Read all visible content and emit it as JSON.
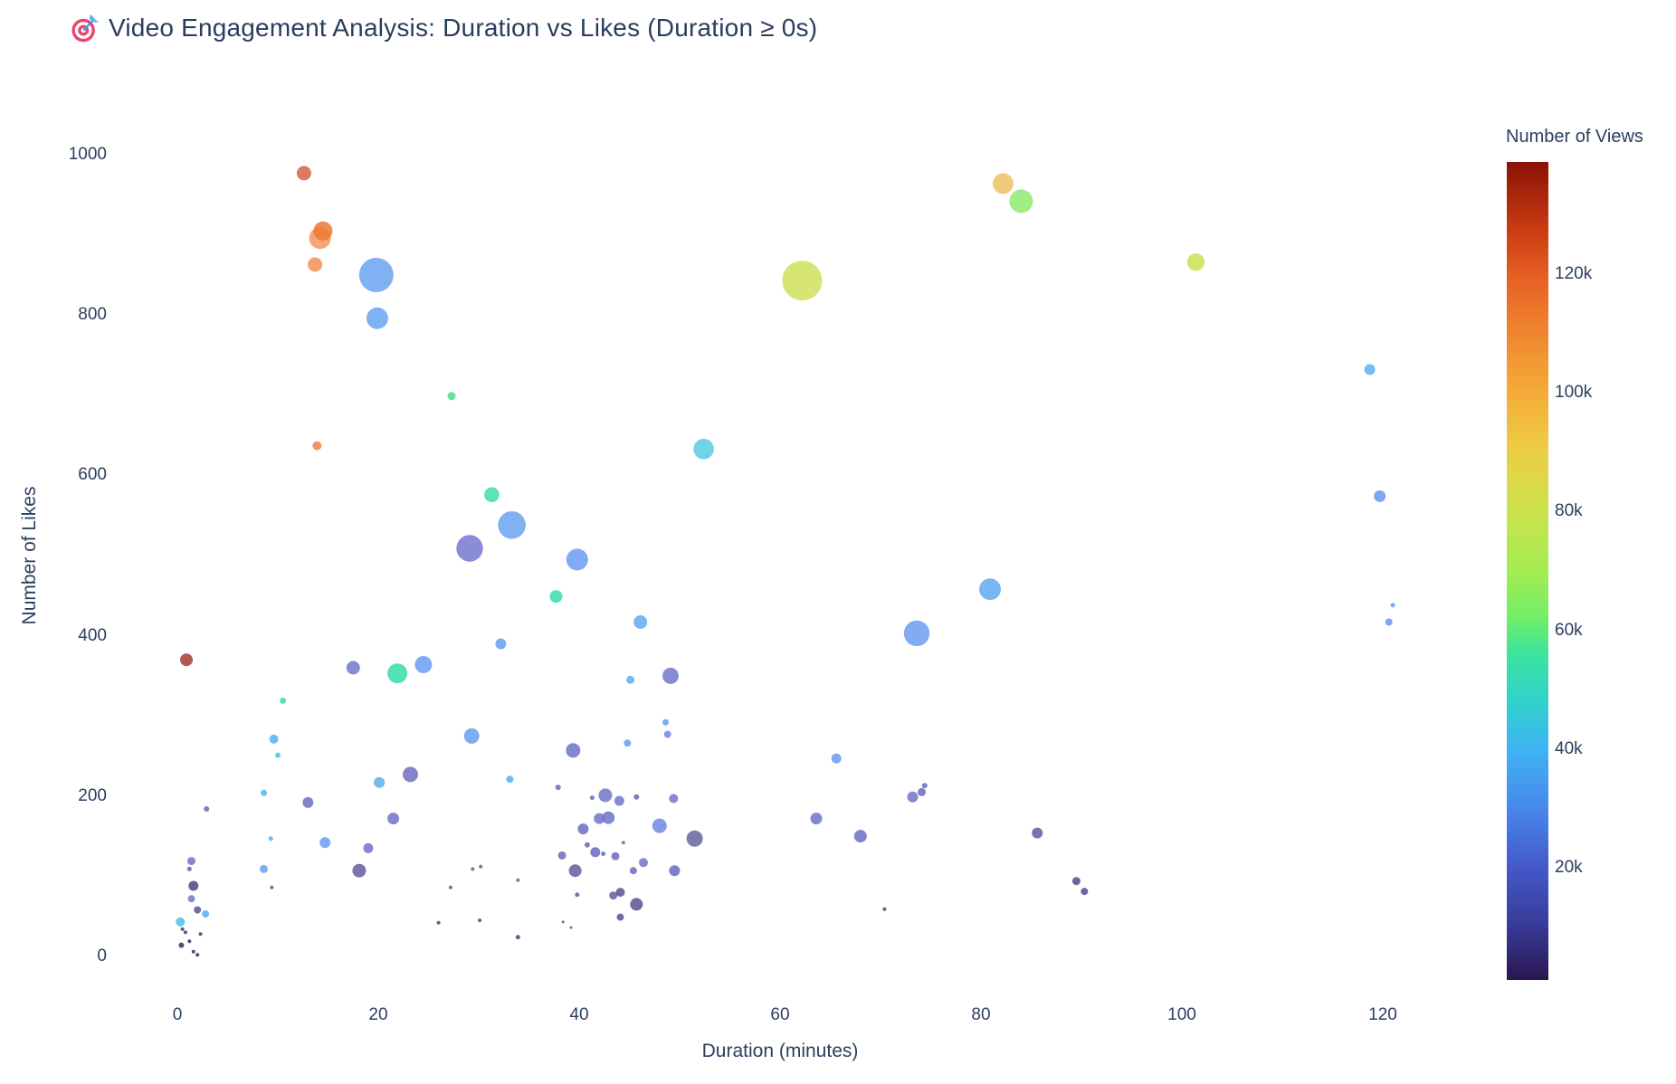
{
  "title": {
    "icon": "dart-target",
    "text": "Video Engagement Analysis: Duration vs Likes (Duration ≥ 0s)"
  },
  "chart_data": {
    "type": "scatter",
    "title": "Video Engagement Analysis: Duration vs Likes (Duration ≥ 0s)",
    "xlabel": "Duration (minutes)",
    "ylabel": "Number of Likes",
    "x_ticks": [
      0,
      20,
      40,
      60,
      80,
      100,
      120
    ],
    "y_ticks": [
      0,
      200,
      400,
      600,
      800,
      1000
    ],
    "xlim": [
      -3,
      124
    ],
    "ylim": [
      -60,
      1060
    ],
    "grid": false,
    "legend_position": "none",
    "colorbar": {
      "title": "Number of Views",
      "ticks_k": [
        20,
        40,
        60,
        80,
        100,
        120
      ],
      "tick_labels": [
        "20k",
        "40k",
        "60k",
        "80k",
        "100k",
        "120k"
      ],
      "vmin_k": 1,
      "vmax_k": 139,
      "colormap": "turbo"
    },
    "columns": [
      "duration_min",
      "likes",
      "views_k",
      "radius_px",
      "color"
    ],
    "points": [
      [
        12.6,
        977,
        120,
        8,
        "#d95f45"
      ],
      [
        14.2,
        896,
        97,
        12,
        "#f3975a"
      ],
      [
        14.5,
        905,
        105,
        10.5,
        "#ec7a33"
      ],
      [
        13.7,
        863,
        100,
        8,
        "#f29254"
      ],
      [
        19.8,
        850,
        26,
        19,
        "#6aa5f1"
      ],
      [
        19.9,
        796,
        26,
        12,
        "#6aa5f1"
      ],
      [
        82.2,
        964,
        90,
        11.5,
        "#f0c263"
      ],
      [
        84.0,
        942,
        61,
        13,
        "#90e96e"
      ],
      [
        62.2,
        843,
        77,
        22,
        "#cfe05c"
      ],
      [
        101.4,
        866,
        78,
        9.7,
        "#c9e252"
      ],
      [
        27.3,
        699,
        56,
        4.5,
        "#4ade80"
      ],
      [
        13.9,
        637,
        106,
        5,
        "#ee8048"
      ],
      [
        52.4,
        633,
        40,
        11.3,
        "#57cbe2"
      ],
      [
        118.7,
        732,
        31,
        6,
        "#5db3f0"
      ],
      [
        119.7,
        574,
        23,
        6.5,
        "#6699ee"
      ],
      [
        121.0,
        438,
        23,
        2.5,
        "#6699ee"
      ],
      [
        120.6,
        417,
        23,
        4,
        "#6699ee"
      ],
      [
        31.3,
        576,
        50,
        8.3,
        "#3edfa0"
      ],
      [
        33.3,
        538,
        23,
        15.3,
        "#6aa3f0"
      ],
      [
        29.1,
        509,
        13,
        14.7,
        "#7678d0"
      ],
      [
        39.8,
        495,
        21,
        12,
        "#6b9df0"
      ],
      [
        37.7,
        449,
        46,
        7,
        "#38dcae"
      ],
      [
        46.1,
        417,
        26,
        7.5,
        "#64a8f0"
      ],
      [
        80.9,
        458,
        26,
        12,
        "#63aaf0"
      ],
      [
        73.6,
        403,
        21,
        14.2,
        "#6b9df0"
      ],
      [
        0.9,
        370,
        135,
        7,
        "#a33c32"
      ],
      [
        17.5,
        360,
        14,
        7.5,
        "#7278cc"
      ],
      [
        21.9,
        353,
        48,
        11,
        "#36dcaa"
      ],
      [
        24.5,
        364,
        21,
        9.5,
        "#6b9df0"
      ],
      [
        32.2,
        390,
        23,
        6,
        "#66a0f0"
      ],
      [
        10.5,
        319,
        46,
        3.5,
        "#38dcae"
      ],
      [
        9.6,
        271,
        35,
        5,
        "#55b4ee"
      ],
      [
        10.0,
        251,
        38,
        3,
        "#47c4e8"
      ],
      [
        29.3,
        275,
        23,
        8.5,
        "#66a0f0"
      ],
      [
        23.2,
        227,
        12,
        8.5,
        "#6f6fc0"
      ],
      [
        20.1,
        217,
        30,
        6,
        "#59b0ee"
      ],
      [
        8.6,
        204,
        35,
        3.5,
        "#55b4ee"
      ],
      [
        13.0,
        192,
        12,
        6,
        "#6f6fc0"
      ],
      [
        2.9,
        184,
        10,
        3,
        "#6666b8"
      ],
      [
        21.5,
        172,
        13,
        6.5,
        "#6f73c8"
      ],
      [
        33.1,
        221,
        30,
        4,
        "#59b0ee"
      ],
      [
        45.1,
        345,
        32,
        4.5,
        "#58b2ee"
      ],
      [
        49.1,
        350,
        15,
        9,
        "#7178cc"
      ],
      [
        48.6,
        292,
        25,
        3.5,
        "#66a0f0"
      ],
      [
        48.8,
        277,
        18,
        4,
        "#6c8ade"
      ],
      [
        44.8,
        266,
        21,
        4,
        "#6b9df0"
      ],
      [
        39.4,
        257,
        13,
        8,
        "#6f73c8"
      ],
      [
        37.9,
        211,
        12,
        3,
        "#6a6abc"
      ],
      [
        42.6,
        201,
        14,
        7.5,
        "#7076ca"
      ],
      [
        44.0,
        194,
        15,
        5.5,
        "#7178cc"
      ],
      [
        41.3,
        198,
        12,
        2.5,
        "#6a6abc"
      ],
      [
        45.7,
        199,
        12,
        3,
        "#6a6abc"
      ],
      [
        49.4,
        197,
        14,
        5,
        "#7076ca"
      ],
      [
        42.0,
        172,
        13,
        6,
        "#6f73c8"
      ],
      [
        42.9,
        173,
        13,
        7,
        "#6f73c8"
      ],
      [
        40.4,
        159,
        12,
        6,
        "#6a6fc2"
      ],
      [
        48.0,
        163,
        18,
        8,
        "#6c8ade"
      ],
      [
        51.5,
        147,
        9,
        9,
        "#68639f"
      ],
      [
        44.4,
        142,
        12,
        2,
        "#6a6abc"
      ],
      [
        40.8,
        139,
        12,
        3,
        "#6a6abc"
      ],
      [
        41.6,
        130,
        12,
        5.5,
        "#6a6abc"
      ],
      [
        42.4,
        128,
        12,
        2.5,
        "#6a6abc"
      ],
      [
        43.6,
        125,
        12,
        4.5,
        "#6a6abc"
      ],
      [
        38.3,
        126,
        12,
        4.5,
        "#6a6abc"
      ],
      [
        39.6,
        107,
        9,
        7,
        "#635d9c"
      ],
      [
        46.4,
        117,
        13,
        5,
        "#6f73c8"
      ],
      [
        45.4,
        107,
        12,
        4,
        "#6a6abc"
      ],
      [
        49.5,
        107,
        12,
        6,
        "#6a6abc"
      ],
      [
        39.8,
        77,
        10,
        2.5,
        "#5f5fa8"
      ],
      [
        43.4,
        76,
        10,
        4.5,
        "#5f5fa8"
      ],
      [
        44.1,
        80,
        8,
        5,
        "#575294"
      ],
      [
        45.7,
        65,
        8,
        7,
        "#575294"
      ],
      [
        44.1,
        49,
        8,
        4,
        "#575294"
      ],
      [
        38.4,
        43,
        8,
        1.5,
        "#575294"
      ],
      [
        39.2,
        36,
        8,
        1.5,
        "#575294"
      ],
      [
        33.9,
        24,
        6,
        2.5,
        "#4a4484"
      ],
      [
        33.9,
        95,
        10,
        2,
        "#5f5fa8"
      ],
      [
        9.3,
        147,
        30,
        2.5,
        "#59b0ee"
      ],
      [
        14.7,
        142,
        21,
        6,
        "#6b9df0"
      ],
      [
        19.0,
        135,
        13,
        5.5,
        "#6f73c8"
      ],
      [
        1.4,
        119,
        13,
        4.5,
        "#6f73c8"
      ],
      [
        1.2,
        109,
        10,
        2.5,
        "#5f5fa8"
      ],
      [
        8.6,
        109,
        25,
        4.5,
        "#66a0f0"
      ],
      [
        18.1,
        107,
        9,
        7.5,
        "#635d9c"
      ],
      [
        1.6,
        88,
        6,
        5.5,
        "#4a4484"
      ],
      [
        9.4,
        86,
        8,
        2,
        "#575294"
      ],
      [
        29.4,
        109,
        10,
        2,
        "#5f5fa8"
      ],
      [
        30.2,
        112,
        10,
        2,
        "#5f5fa8"
      ],
      [
        27.2,
        86,
        8,
        2,
        "#575294"
      ],
      [
        1.4,
        72,
        15,
        4,
        "#7178cc"
      ],
      [
        2.0,
        58,
        8,
        4,
        "#575294"
      ],
      [
        2.8,
        53,
        28,
        4,
        "#5babf0"
      ],
      [
        0.3,
        43,
        33,
        5,
        "#4fc0ea"
      ],
      [
        0.5,
        34,
        5,
        2,
        "#423a74"
      ],
      [
        0.8,
        30,
        5,
        2,
        "#423a74"
      ],
      [
        2.3,
        28,
        5,
        2,
        "#423a74"
      ],
      [
        0.4,
        14,
        4,
        3,
        "#3a2d60"
      ],
      [
        1.6,
        6,
        4,
        2,
        "#3a2d60"
      ],
      [
        2.0,
        2,
        4,
        2,
        "#3a2d60"
      ],
      [
        1.2,
        19,
        4,
        2,
        "#3a2d60"
      ],
      [
        26.0,
        42,
        6,
        2,
        "#4a4484"
      ],
      [
        30.1,
        45,
        6,
        2,
        "#4a4484"
      ],
      [
        65.6,
        247,
        21,
        5.5,
        "#6b9df0"
      ],
      [
        74.4,
        213,
        12,
        3,
        "#6a6abc"
      ],
      [
        74.1,
        205,
        12,
        4.5,
        "#6a6abc"
      ],
      [
        73.2,
        199,
        13,
        6,
        "#6f73c8"
      ],
      [
        63.6,
        172,
        13,
        6.5,
        "#6f73c8"
      ],
      [
        68.0,
        150,
        12,
        7,
        "#6a6fc2"
      ],
      [
        85.6,
        154,
        10,
        6,
        "#625d9e"
      ],
      [
        89.5,
        94,
        7,
        4.5,
        "#514b8e"
      ],
      [
        90.3,
        81,
        7,
        4,
        "#514b8e"
      ],
      [
        70.4,
        59,
        6,
        2,
        "#4a4484"
      ]
    ]
  }
}
